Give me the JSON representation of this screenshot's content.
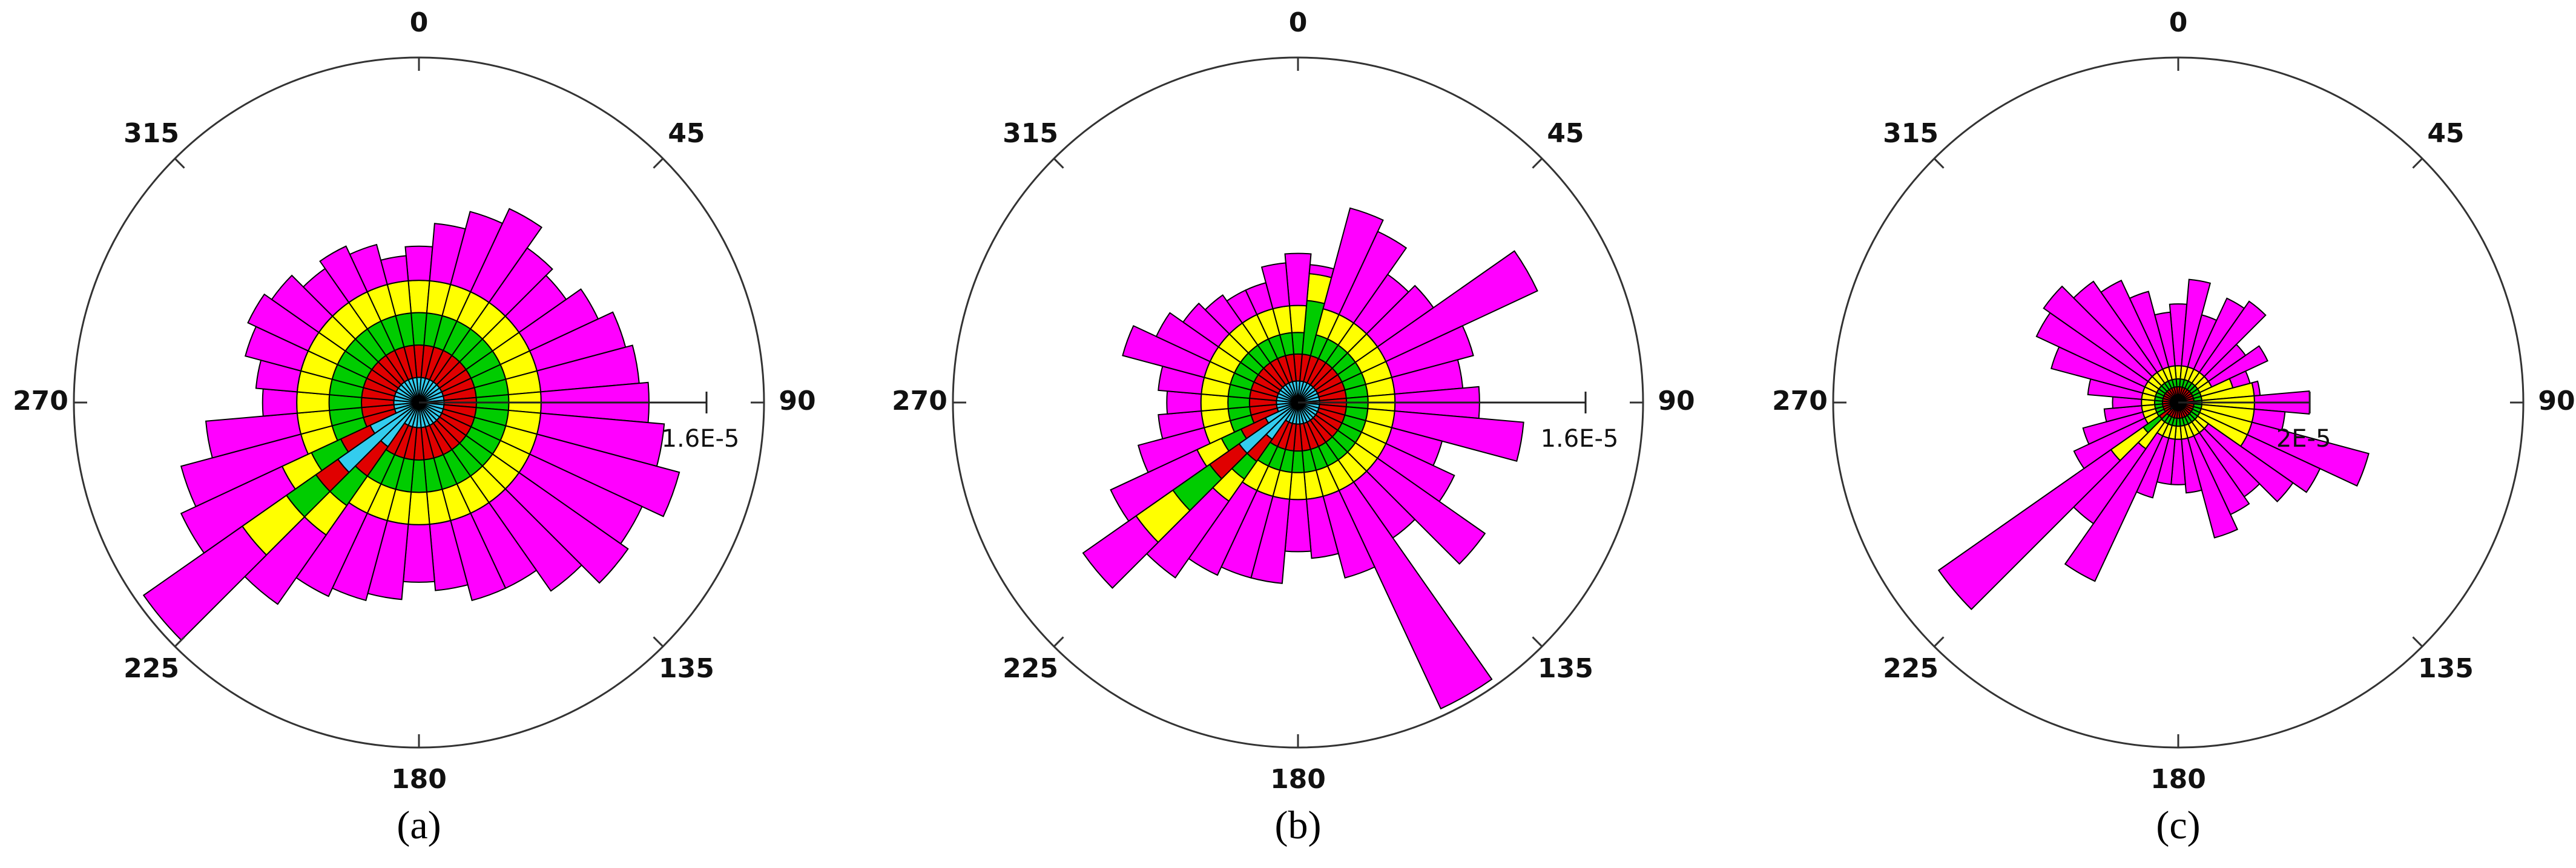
{
  "chart_data": [
    {
      "type": "rose",
      "caption": "(a)",
      "x": [
        0,
        10,
        20,
        30,
        40,
        50,
        60,
        70,
        80,
        90,
        100,
        110,
        120,
        130,
        140,
        150,
        160,
        170,
        180,
        190,
        200,
        210,
        220,
        230,
        240,
        250,
        260,
        270,
        280,
        290,
        300,
        310,
        320,
        330,
        340,
        350
      ],
      "xticks": [
        0,
        45,
        90,
        135,
        180,
        225,
        270,
        315
      ],
      "rlim": [
        0,
        1.92e-05
      ],
      "rticks": [
        {
          "value": 1.6e-05,
          "label": "1.6E-5"
        }
      ],
      "series": [
        {
          "color": "#33ccee",
          "values": [
            1.4e-06,
            1.4e-06,
            1.4e-06,
            1.4e-06,
            1.4e-06,
            1.4e-06,
            1.4e-06,
            1.4e-06,
            1.4e-06,
            1.4e-06,
            1.4e-06,
            1.4e-06,
            1.4e-06,
            1.4e-06,
            1.4e-06,
            1.4e-06,
            1.4e-06,
            1.4e-06,
            1.4e-06,
            1.4e-06,
            1.4e-06,
            1.4e-06,
            3e-06,
            5.5e-06,
            3e-06,
            1.4e-06,
            1.4e-06,
            1.4e-06,
            1.4e-06,
            1.4e-06,
            1.4e-06,
            1.4e-06,
            1.4e-06,
            1.4e-06,
            1.4e-06,
            1.4e-06
          ]
        },
        {
          "color": "#e00000",
          "values": [
            1.8e-06,
            1.8e-06,
            1.8e-06,
            1.8e-06,
            1.8e-06,
            1.8e-06,
            1.8e-06,
            1.8e-06,
            1.8e-06,
            1.8e-06,
            1.8e-06,
            1.8e-06,
            1.8e-06,
            1.8e-06,
            1.8e-06,
            1.8e-06,
            1.8e-06,
            1.8e-06,
            1.8e-06,
            1.8e-06,
            1.8e-06,
            1.8e-06,
            2e-06,
            1.5e-06,
            1.8e-06,
            1.8e-06,
            1.8e-06,
            1.8e-06,
            1.8e-06,
            1.8e-06,
            1.8e-06,
            1.8e-06,
            1.8e-06,
            1.8e-06,
            1.8e-06,
            1.8e-06
          ]
        },
        {
          "color": "#00cc00",
          "values": [
            1.8e-06,
            1.8e-06,
            1.8e-06,
            1.8e-06,
            1.8e-06,
            1.8e-06,
            1.8e-06,
            1.8e-06,
            1.8e-06,
            1.8e-06,
            1.8e-06,
            1.8e-06,
            1.8e-06,
            1.8e-06,
            1.8e-06,
            1.8e-06,
            1.8e-06,
            1.8e-06,
            1.8e-06,
            1.8e-06,
            1.8e-06,
            1.8e-06,
            2e-06,
            2e-06,
            1.8e-06,
            1.8e-06,
            1.8e-06,
            1.8e-06,
            1.8e-06,
            1.8e-06,
            1.8e-06,
            1.8e-06,
            1.8e-06,
            1.8e-06,
            1.8e-06,
            1.8e-06
          ]
        },
        {
          "color": "#ffff00",
          "values": [
            1.8e-06,
            1.8e-06,
            1.8e-06,
            1.8e-06,
            1.8e-06,
            1.8e-06,
            1.8e-06,
            1.8e-06,
            1.8e-06,
            1.8e-06,
            1.8e-06,
            1.8e-06,
            1.8e-06,
            1.8e-06,
            1.8e-06,
            1.8e-06,
            1.8e-06,
            1.8e-06,
            1.8e-06,
            1.8e-06,
            1.8e-06,
            1.8e-06,
            2e-06,
            3e-06,
            1.8e-06,
            1.8e-06,
            1.8e-06,
            1.8e-06,
            1.8e-06,
            1.8e-06,
            1.8e-06,
            1.8e-06,
            1.8e-06,
            1.8e-06,
            1.8e-06,
            1.8e-06
          ]
        },
        {
          "color": "#ff00ff",
          "values": [
            1.9e-06,
            3.2e-06,
            4.2e-06,
            5.1e-06,
            3.7e-06,
            3.2e-06,
            4.2e-06,
            5.1e-06,
            5.5e-06,
            6e-06,
            6.9e-06,
            8.2e-06,
            6.9e-06,
            7.4e-06,
            6e-06,
            4.6e-06,
            4.6e-06,
            3.7e-06,
            3.2e-06,
            4.2e-06,
            4.6e-06,
            5.1e-06,
            4.7e-06,
            6.7e-06,
            6.2e-06,
            6.9e-06,
            5.1e-06,
            1.9e-06,
            2.3e-06,
            3.2e-06,
            3.7e-06,
            3.2e-06,
            2.3e-06,
            2.8e-06,
            2.3e-06,
            1.4e-06
          ]
        }
      ]
    },
    {
      "type": "rose",
      "caption": "(b)",
      "x": [
        0,
        10,
        20,
        30,
        40,
        50,
        60,
        70,
        80,
        90,
        100,
        110,
        120,
        130,
        140,
        150,
        160,
        170,
        180,
        190,
        200,
        210,
        220,
        230,
        240,
        250,
        260,
        270,
        280,
        290,
        300,
        310,
        320,
        330,
        340,
        350
      ],
      "xticks": [
        0,
        45,
        90,
        135,
        180,
        225,
        270,
        315
      ],
      "rlim": [
        0,
        1.92e-05
      ],
      "rticks": [
        {
          "value": 1.6e-05,
          "label": "1.6E-5"
        }
      ],
      "series": [
        {
          "color": "#33ccee",
          "values": [
            1.2e-06,
            1.2e-06,
            1.2e-06,
            1.2e-06,
            1.2e-06,
            1.2e-06,
            1.2e-06,
            1.2e-06,
            1.2e-06,
            1.2e-06,
            1.2e-06,
            1.2e-06,
            1.2e-06,
            1.2e-06,
            1.2e-06,
            1.2e-06,
            1.2e-06,
            1.2e-06,
            1.2e-06,
            1.2e-06,
            1.2e-06,
            1.2e-06,
            2.5e-06,
            4e-06,
            2e-06,
            1.2e-06,
            1.2e-06,
            1.2e-06,
            1.2e-06,
            1.2e-06,
            1.2e-06,
            1.2e-06,
            1.2e-06,
            1.2e-06,
            1.2e-06,
            1.2e-06
          ]
        },
        {
          "color": "#e00000",
          "values": [
            1.5e-06,
            1.5e-06,
            1.5e-06,
            1.5e-06,
            1.5e-06,
            1.5e-06,
            1.5e-06,
            1.5e-06,
            1.5e-06,
            1.5e-06,
            1.5e-06,
            1.5e-06,
            1.5e-06,
            1.5e-06,
            1.5e-06,
            1.5e-06,
            1.5e-06,
            1.5e-06,
            1.5e-06,
            1.5e-06,
            1.5e-06,
            1.5e-06,
            1.5e-06,
            2e-06,
            1.5e-06,
            1.5e-06,
            1.5e-06,
            1.5e-06,
            1.5e-06,
            1.5e-06,
            1.5e-06,
            1.5e-06,
            1.5e-06,
            1.5e-06,
            1.5e-06,
            1.5e-06
          ]
        },
        {
          "color": "#00cc00",
          "values": [
            1.2e-06,
            3e-06,
            1.2e-06,
            1.2e-06,
            1.2e-06,
            1.2e-06,
            1.2e-06,
            1.2e-06,
            1.2e-06,
            1.2e-06,
            1.2e-06,
            1.2e-06,
            1.2e-06,
            1.2e-06,
            1.2e-06,
            1.2e-06,
            1.2e-06,
            1.2e-06,
            1.2e-06,
            1.2e-06,
            1.2e-06,
            1.2e-06,
            1.2e-06,
            2.5e-06,
            1.2e-06,
            1.2e-06,
            1.2e-06,
            1.2e-06,
            1.2e-06,
            1.2e-06,
            1.2e-06,
            1.2e-06,
            1.2e-06,
            1.2e-06,
            1.2e-06,
            1.2e-06
          ]
        },
        {
          "color": "#ffff00",
          "values": [
            1.5e-06,
            1.5e-06,
            1.5e-06,
            1.5e-06,
            1.5e-06,
            1.5e-06,
            1.5e-06,
            1.5e-06,
            1.5e-06,
            1.5e-06,
            1.5e-06,
            1.5e-06,
            1.5e-06,
            1.5e-06,
            1.5e-06,
            1.5e-06,
            1.5e-06,
            1.5e-06,
            1.5e-06,
            1.5e-06,
            1.5e-06,
            1.5e-06,
            1.5e-06,
            2.5e-06,
            1.5e-06,
            1.5e-06,
            1.5e-06,
            1.5e-06,
            1.5e-06,
            1.5e-06,
            1.5e-06,
            1.5e-06,
            1.5e-06,
            1.5e-06,
            1.5e-06,
            1.5e-06
          ]
        },
        {
          "color": "#ff00ff",
          "values": [
            2.9e-06,
            5e-07,
            5.8e-06,
            5.1e-06,
            3.3e-06,
            3.8e-06,
            9.3e-06,
            4.7e-06,
            3.8e-06,
            4.7e-06,
            7.2e-06,
            2.9e-06,
            4.2e-06,
            7.3e-06,
            3.8e-06,
            1.34e-05,
            4.7e-06,
            3.3e-06,
            2.9e-06,
            4.7e-06,
            4.7e-06,
            5.2e-06,
            5.2e-06,
            3.6e-06,
            5.3e-06,
            3.8e-06,
            2.4e-06,
            1.9e-06,
            2.4e-06,
            4.7e-06,
            3.3e-06,
            2.4e-06,
            1.9e-06,
            1.5e-06,
            1.5e-06,
            2.4e-06
          ]
        }
      ]
    },
    {
      "type": "rose",
      "caption": "(c)",
      "x": [
        0,
        10,
        20,
        30,
        40,
        50,
        60,
        70,
        80,
        90,
        100,
        110,
        120,
        130,
        140,
        150,
        160,
        170,
        180,
        190,
        200,
        210,
        220,
        230,
        240,
        250,
        260,
        270,
        280,
        290,
        300,
        310,
        320,
        330,
        340,
        350
      ],
      "xticks": [
        0,
        45,
        90,
        135,
        180,
        225,
        270,
        315
      ],
      "rlim": [
        0,
        5.25e-05
      ],
      "rticks": [
        {
          "value": 2e-05,
          "label": "2E-5"
        }
      ],
      "series": [
        {
          "color": "#33ccee",
          "values": [
            1.2e-06,
            1.2e-06,
            1.2e-06,
            1.2e-06,
            1.2e-06,
            1.2e-06,
            1.2e-06,
            1.2e-06,
            1.2e-06,
            1.2e-06,
            1.2e-06,
            1.2e-06,
            1.2e-06,
            1.2e-06,
            1.2e-06,
            1.2e-06,
            1.2e-06,
            1.2e-06,
            1.2e-06,
            1.2e-06,
            1.2e-06,
            1.2e-06,
            1.2e-06,
            1.5e-06,
            1.2e-06,
            1.2e-06,
            1.2e-06,
            1.2e-06,
            1.2e-06,
            1.2e-06,
            1.2e-06,
            1.2e-06,
            1.2e-06,
            1.2e-06,
            1.2e-06,
            1.2e-06
          ]
        },
        {
          "color": "#e00000",
          "values": [
            1.2e-06,
            1.2e-06,
            1.2e-06,
            1.2e-06,
            1.2e-06,
            1.2e-06,
            1.2e-06,
            1.2e-06,
            1.2e-06,
            1.2e-06,
            1.2e-06,
            1.2e-06,
            1.2e-06,
            1.2e-06,
            1.2e-06,
            1.2e-06,
            1.2e-06,
            1.2e-06,
            1.2e-06,
            1.2e-06,
            1.2e-06,
            1.2e-06,
            1.2e-06,
            2e-06,
            1.2e-06,
            1.2e-06,
            1.2e-06,
            1.2e-06,
            1.2e-06,
            1.2e-06,
            1.2e-06,
            1.2e-06,
            1.2e-06,
            1.2e-06,
            1.2e-06,
            1.2e-06
          ]
        },
        {
          "color": "#00cc00",
          "values": [
            1.2e-06,
            1.2e-06,
            1.2e-06,
            1.2e-06,
            1.2e-06,
            1.2e-06,
            1.2e-06,
            1.2e-06,
            1.2e-06,
            1.2e-06,
            1.2e-06,
            1.2e-06,
            1.2e-06,
            1.2e-06,
            1.2e-06,
            1.2e-06,
            1.2e-06,
            1.2e-06,
            1.2e-06,
            1.2e-06,
            1.2e-06,
            1.2e-06,
            1.2e-06,
            3e-06,
            1.2e-06,
            1.2e-06,
            1.2e-06,
            1.2e-06,
            1.2e-06,
            1.2e-06,
            1.2e-06,
            1.2e-06,
            1.2e-06,
            1.2e-06,
            1.2e-06,
            1.2e-06
          ]
        },
        {
          "color": "#ffff00",
          "values": [
            2e-06,
            2e-06,
            2e-06,
            2e-06,
            2e-06,
            2e-06,
            2e-06,
            5e-06,
            8e-06,
            8e-06,
            8e-06,
            8e-06,
            8e-06,
            2e-06,
            2e-06,
            2e-06,
            2e-06,
            2e-06,
            2e-06,
            2e-06,
            2e-06,
            2e-06,
            5e-06,
            6e-06,
            2e-06,
            2e-06,
            2e-06,
            2e-06,
            2e-06,
            2e-06,
            2e-06,
            2e-06,
            2e-06,
            2e-06,
            2e-06,
            2e-06
          ]
        },
        {
          "color": "#ff00ff",
          "values": [
            9.4e-06,
            1.32e-05,
            8.2e-06,
            1.19e-05,
            1.32e-05,
            6.9e-06,
            9.4e-06,
            2.7e-06,
            9e-07,
            8.4e-06,
            4.7e-06,
            1.84e-05,
            1.22e-05,
            1.57e-05,
            1.19e-05,
            1.32e-05,
            1.57e-05,
            8.2e-06,
            6.9e-06,
            6.9e-06,
            9.4e-06,
            2.44e-05,
            1.39e-05,
            3.2e-05,
            1.19e-05,
            9.4e-06,
            5.7e-06,
            4.4e-06,
            8.2e-06,
            1.44e-05,
            1.82e-05,
            1.94e-05,
            1.69e-05,
            1.49e-05,
            1.19e-05,
            8.2e-06
          ]
        }
      ]
    }
  ]
}
